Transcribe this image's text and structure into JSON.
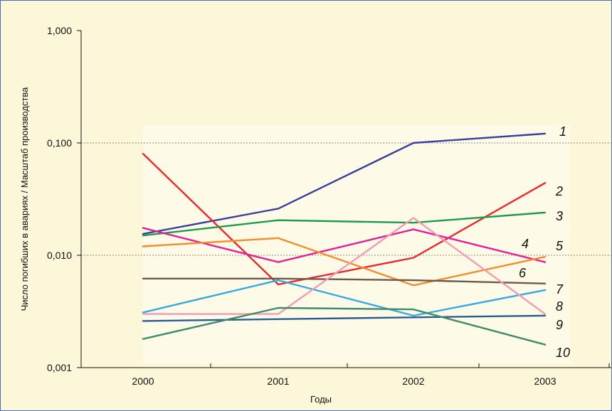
{
  "chart_data": {
    "type": "line",
    "xlabel": "Годы",
    "ylabel": "Число погибших в авариях / Масштаб производства",
    "yscale": "log",
    "ylim": [
      0.001,
      1.0
    ],
    "x": [
      "2000",
      "2001",
      "2002",
      "2003"
    ],
    "y_ticks": [
      "0,001",
      "0,010",
      "0,100",
      "1,000"
    ],
    "grid": "dotted horizontal at 0,010 and 0,100",
    "series": [
      {
        "name": "1",
        "color": "#3b3f9e",
        "values": [
          0.0155,
          0.026,
          0.1,
          0.121
        ]
      },
      {
        "name": "2",
        "color": "#e8282d",
        "values": [
          0.08,
          0.0055,
          0.0095,
          0.044
        ]
      },
      {
        "name": "3",
        "color": "#1f9a4a",
        "values": [
          0.015,
          0.0205,
          0.0195,
          0.024
        ]
      },
      {
        "name": "4",
        "color": "#e3209a",
        "values": [
          0.0175,
          0.0087,
          0.017,
          0.0087
        ]
      },
      {
        "name": "5",
        "color": "#f48c2b",
        "values": [
          0.012,
          0.0142,
          0.0054,
          0.0097
        ]
      },
      {
        "name": "6",
        "color": "#6e5a4a",
        "values": [
          0.0062,
          0.0062,
          0.006,
          0.0056
        ]
      },
      {
        "name": "7",
        "color": "#3aa9e0",
        "values": [
          0.0031,
          0.006,
          0.0029,
          0.0049
        ]
      },
      {
        "name": "8",
        "color": "#f29bb4",
        "values": [
          0.003,
          0.003,
          0.0215,
          0.003
        ]
      },
      {
        "name": "9",
        "color": "#2b5c8f",
        "values": [
          0.0026,
          0.0027,
          0.0028,
          0.0029
        ]
      },
      {
        "name": "10",
        "color": "#3e8a6b",
        "values": [
          0.0018,
          0.0034,
          0.0033,
          0.0016
        ]
      }
    ]
  }
}
